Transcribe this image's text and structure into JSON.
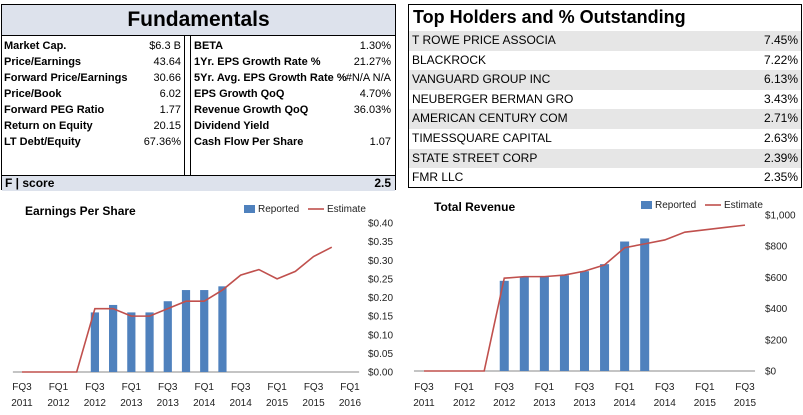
{
  "fundamentals": {
    "title": "Fundamentals",
    "left": [
      {
        "label": "Market Cap.",
        "value": "$6.3 B"
      },
      {
        "label": "Price/Earnings",
        "value": "43.64"
      },
      {
        "label": "Forward Price/Earnings",
        "value": "30.66"
      },
      {
        "label": "Price/Book",
        "value": "6.02"
      },
      {
        "label": "Forward PEG Ratio",
        "value": "1.77"
      },
      {
        "label": "Return on Equity",
        "value": "20.15"
      },
      {
        "label": "LT Debt/Equity",
        "value": "67.36%"
      }
    ],
    "right": [
      {
        "label": "BETA",
        "value": "1.30%"
      },
      {
        "label": "1Yr. EPS Growth Rate %",
        "value": "21.27%"
      },
      {
        "label": "5Yr. Avg. EPS Growth Rate %",
        "value": "#N/A N/A"
      },
      {
        "label": "EPS Growth QoQ",
        "value": "4.70%"
      },
      {
        "label": "Revenue Growth QoQ",
        "value": "36.03%"
      },
      {
        "label": "Dividend Yield",
        "value": ""
      },
      {
        "label": "Cash Flow Per Share",
        "value": "1.07"
      }
    ],
    "fscore_label": "F | score",
    "fscore_value": "2.5"
  },
  "holders": {
    "title": "Top Holders and % Outstanding",
    "rows": [
      {
        "name": "T ROWE PRICE ASSOCIA",
        "pct": "7.45%"
      },
      {
        "name": "BLACKROCK",
        "pct": "7.22%"
      },
      {
        "name": "VANGUARD GROUP INC",
        "pct": "6.13%"
      },
      {
        "name": "NEUBERGER BERMAN GRO",
        "pct": "3.43%"
      },
      {
        "name": "AMERICAN CENTURY COM",
        "pct": "2.71%"
      },
      {
        "name": "TIMESSQUARE CAPITAL",
        "pct": "2.63%"
      },
      {
        "name": "STATE STREET CORP",
        "pct": "2.39%"
      },
      {
        "name": "FMR LLC",
        "pct": "2.35%"
      }
    ]
  },
  "chart_data": [
    {
      "type": "bar",
      "title": "Earnings Per Share",
      "categories": [
        "FQ3 2011",
        "",
        "FQ1 2012",
        "",
        "FQ3 2012",
        "",
        "FQ1 2013",
        "",
        "FQ3 2013",
        "",
        "FQ1 2014",
        "",
        "FQ3 2014",
        "",
        "FQ1 2015",
        "",
        "FQ3 2015",
        "",
        "FQ1 2016"
      ],
      "x_tick_labels": [
        [
          "FQ3",
          "2011"
        ],
        [
          "FQ1",
          "2012"
        ],
        [
          "FQ3",
          "2012"
        ],
        [
          "FQ1",
          "2013"
        ],
        [
          "FQ3",
          "2013"
        ],
        [
          "FQ1",
          "2014"
        ],
        [
          "FQ3",
          "2014"
        ],
        [
          "FQ1",
          "2015"
        ],
        [
          "FQ3",
          "2015"
        ],
        [
          "FQ1",
          "2016"
        ]
      ],
      "series": [
        {
          "name": "Reported",
          "values": [
            null,
            null,
            null,
            null,
            0.16,
            0.18,
            0.16,
            0.16,
            0.19,
            0.22,
            0.22,
            0.23,
            null,
            null,
            null,
            null,
            null,
            null,
            null
          ]
        },
        {
          "name": "Estimate",
          "values": [
            0,
            0,
            0,
            0,
            0.17,
            0.17,
            0.15,
            0.15,
            0.17,
            0.19,
            0.19,
            0.22,
            0.26,
            0.275,
            0.25,
            0.27,
            0.31,
            0.335,
            null
          ]
        }
      ],
      "ylim": [
        0,
        0.4
      ],
      "yticks": [
        "$0.00",
        "$0.05",
        "$0.10",
        "$0.15",
        "$0.20",
        "$0.25",
        "$0.30",
        "$0.35",
        "$0.40"
      ],
      "yaxis_side": "right"
    },
    {
      "type": "bar",
      "title": "Total Revenue",
      "categories": [
        "FQ3 2011",
        "",
        "FQ1 2012",
        "",
        "FQ3 2012",
        "",
        "FQ1 2013",
        "",
        "FQ3 2013",
        "",
        "FQ1 2014",
        "",
        "FQ3 2014",
        "",
        "FQ1 2015",
        "",
        "FQ3 2015"
      ],
      "x_tick_labels": [
        [
          "FQ3",
          "2011"
        ],
        [
          "FQ1",
          "2012"
        ],
        [
          "FQ3",
          "2012"
        ],
        [
          "FQ1",
          "2013"
        ],
        [
          "FQ3",
          "2013"
        ],
        [
          "FQ1",
          "2014"
        ],
        [
          "FQ3",
          "2014"
        ],
        [
          "FQ1",
          "2015"
        ],
        [
          "FQ3",
          "2015"
        ]
      ],
      "series": [
        {
          "name": "Reported",
          "values": [
            null,
            null,
            null,
            null,
            578,
            605,
            605,
            614,
            640,
            685,
            830,
            850,
            null,
            null,
            null,
            null,
            null
          ]
        },
        {
          "name": "Estimate",
          "values": [
            0,
            0,
            0,
            0,
            595,
            605,
            605,
            615,
            640,
            680,
            790,
            815,
            840,
            890,
            905,
            920,
            935
          ]
        }
      ],
      "ylim": [
        0,
        1000
      ],
      "yticks": [
        "$0",
        "$200",
        "$400",
        "$600",
        "$800",
        "$1,000"
      ],
      "yaxis_side": "right"
    }
  ],
  "colors": {
    "bar": "#4f81bd",
    "line": "#c0504d",
    "header_bg": "#dde2ec"
  }
}
